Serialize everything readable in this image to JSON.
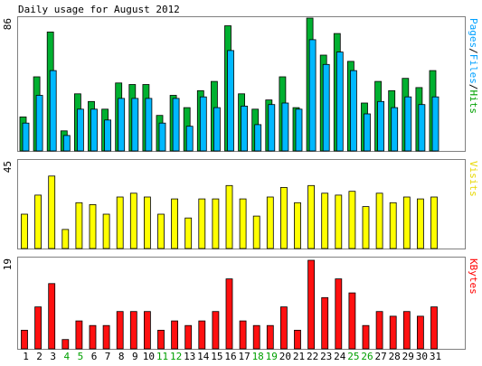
{
  "chart_data": {
    "type": "bar",
    "title": "Daily usage for August 2012",
    "background": "#ffffff",
    "frame_color": "#808080",
    "days": [
      "1",
      "2",
      "3",
      "4",
      "5",
      "6",
      "7",
      "8",
      "9",
      "10",
      "11",
      "12",
      "13",
      "14",
      "15",
      "16",
      "17",
      "18",
      "19",
      "20",
      "21",
      "22",
      "23",
      "24",
      "25",
      "26",
      "27",
      "28",
      "29",
      "30",
      "31"
    ],
    "weekend_days": [
      "4",
      "5",
      "11",
      "12",
      "18",
      "19",
      "25",
      "26"
    ],
    "day_label_color": "#000000",
    "weekend_label_color": "#00a000",
    "panels": [
      {
        "name": "top",
        "max_label": "86",
        "ylim": [
          0,
          86
        ],
        "side_label_parts": [
          {
            "text": "Pages",
            "color": "#00a0ff"
          },
          {
            "text": "/",
            "color": "#000000"
          },
          {
            "text": "Files",
            "color": "#00a0ff"
          },
          {
            "text": "/",
            "color": "#000000"
          },
          {
            "text": "Hits",
            "color": "#00a000"
          }
        ],
        "series": [
          {
            "color": "#00b030",
            "values": [
              22,
              48,
              77,
              13,
              37,
              32,
              27,
              44,
              43,
              43,
              23,
              36,
              28,
              39,
              45,
              81,
              37,
              27,
              33,
              48,
              28,
              86,
              62,
              76,
              58,
              31,
              45,
              39,
              47,
              41,
              52
            ]
          },
          {
            "color": "#00b8ff",
            "values": [
              18,
              36,
              52,
              10,
              27,
              27,
              20,
              34,
              34,
              34,
              18,
              34,
              16,
              35,
              28,
              65,
              29,
              17,
              30,
              31,
              27,
              72,
              56,
              64,
              52,
              24,
              32,
              28,
              35,
              30,
              35
            ]
          }
        ]
      },
      {
        "name": "middle",
        "max_label": "45",
        "ylim": [
          0,
          45
        ],
        "side_label_parts": [
          {
            "text": "Visits",
            "color": "#e8d800"
          }
        ],
        "series": [
          {
            "color": "#ffff00",
            "values": [
              18,
              28,
              38,
              10,
              24,
              23,
              18,
              27,
              29,
              27,
              18,
              26,
              16,
              26,
              26,
              33,
              26,
              17,
              27,
              32,
              24,
              33,
              29,
              28,
              30,
              22,
              29,
              24,
              27,
              26,
              27
            ]
          }
        ]
      },
      {
        "name": "bottom",
        "max_label": "19",
        "ylim": [
          0,
          19
        ],
        "side_label_parts": [
          {
            "text": "KBytes",
            "color": "#ff0000"
          }
        ],
        "series": [
          {
            "color": "#ff1010",
            "values": [
              4,
              9,
              14,
              2,
              6,
              5,
              5,
              8,
              8,
              8,
              4,
              6,
              5,
              6,
              8,
              15,
              6,
              5,
              5,
              9,
              4,
              19,
              11,
              15,
              12,
              5,
              8,
              7,
              8,
              7,
              9
            ]
          }
        ]
      }
    ]
  }
}
